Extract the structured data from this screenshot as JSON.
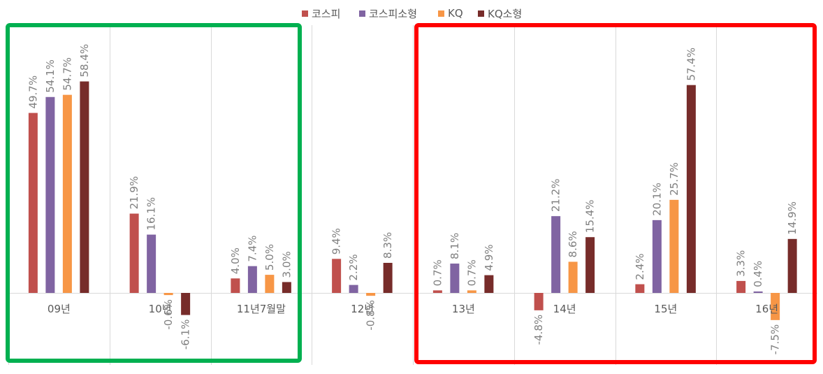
{
  "chart_data": {
    "type": "bar",
    "categories": [
      "09년",
      "10년",
      "11년7월말",
      "12년",
      "13년",
      "14년",
      "15년",
      "16년"
    ],
    "series": [
      {
        "name": "코스피",
        "color": "#C0504D",
        "values": [
          49.7,
          21.9,
          4.0,
          9.4,
          0.7,
          -4.8,
          2.4,
          3.3
        ]
      },
      {
        "name": "코스피소형",
        "color": "#8064A2",
        "values": [
          54.1,
          16.1,
          7.4,
          2.2,
          8.1,
          21.2,
          20.1,
          0.4
        ]
      },
      {
        "name": "KQ",
        "color": "#F79646",
        "values": [
          54.7,
          -0.6,
          5.0,
          -0.8,
          0.7,
          8.6,
          25.7,
          -7.5
        ]
      },
      {
        "name": "KQ소형",
        "color": "#772C2A",
        "values": [
          58.4,
          -6.1,
          3.0,
          8.3,
          4.9,
          15.4,
          57.4,
          14.9
        ]
      }
    ],
    "value_labels": [
      [
        "49.7%",
        "21.9%",
        "4.0%",
        "9.4%",
        "0.7%",
        "-4.8%",
        "2.4%",
        "3.3%"
      ],
      [
        "54.1%",
        "16.1%",
        "7.4%",
        "2.2%",
        "8.1%",
        "21.2%",
        "20.1%",
        "0.4%"
      ],
      [
        "54.7%",
        "-0.6%",
        "5.0%",
        "-0.8%",
        "0.7%",
        "8.6%",
        "25.7%",
        "-7.5%"
      ],
      [
        "58.4%",
        "-6.1%",
        "3.0%",
        "8.3%",
        "4.9%",
        "15.4%",
        "57.4%",
        "14.9%"
      ]
    ],
    "title": "",
    "xlabel": "",
    "ylabel": "",
    "legend_position": "top",
    "grid": "vertical category dividers",
    "highlight_boxes": [
      {
        "color": "#00B050",
        "categories": [
          "09년",
          "10년",
          "11년7월말"
        ]
      },
      {
        "color": "#FF0000",
        "categories": [
          "13년",
          "14년",
          "15년",
          "16년"
        ]
      }
    ]
  }
}
